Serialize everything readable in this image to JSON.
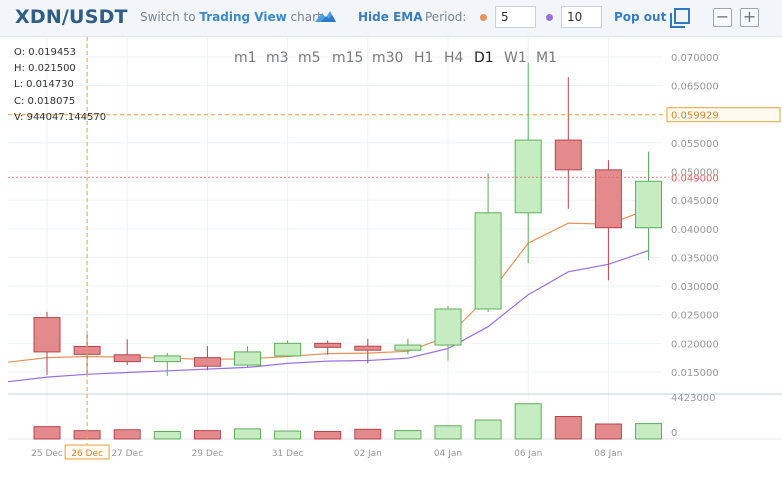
{
  "header": {
    "pair": "XDN/USDT",
    "switch_prefix": "Switch to",
    "switch_brand": "Trading View",
    "switch_suffix": "chart",
    "hide_ema": "Hide EMA",
    "period_label": "Period:",
    "ema_fast": "5",
    "ema_slow": "10",
    "pop_out": "Pop out",
    "minus": "−",
    "plus": "+"
  },
  "colors": {
    "up_fill": "#c8ecc2",
    "up_stroke": "#5fae5a",
    "down_fill": "#e48a8d",
    "down_stroke": "#b5464b",
    "ema_fast": "#e7935c",
    "ema_slow": "#9b6fe0",
    "crosshair": "#e8a23c",
    "last_price": "#e26464"
  },
  "ohlc": [
    {
      "label": "O:",
      "value": "0.019453"
    },
    {
      "label": "H:",
      "value": "0.021500"
    },
    {
      "label": "L:",
      "value": "0.014730"
    },
    {
      "label": "C:",
      "value": "0.018075"
    },
    {
      "label": "V:",
      "value": "944047.144570"
    }
  ],
  "timeframes": [
    {
      "label": "m1",
      "active": false
    },
    {
      "label": "m3",
      "active": false
    },
    {
      "label": "m5",
      "active": false
    },
    {
      "label": "m15",
      "active": false
    },
    {
      "label": "m30",
      "active": false
    },
    {
      "label": "H1",
      "active": false
    },
    {
      "label": "H4",
      "active": false
    },
    {
      "label": "D1",
      "active": true
    },
    {
      "label": "W1",
      "active": false
    },
    {
      "label": "M1",
      "active": false
    }
  ],
  "chart_data": {
    "type": "candlestick",
    "price_ticks": [
      "0.070000",
      "0.065000",
      "0.060000",
      "0.055000",
      "0.050000",
      "0.045000",
      "0.040000",
      "0.035000",
      "0.030000",
      "0.025000",
      "0.020000",
      "0.015000"
    ],
    "ylim": [
      0.0115,
      0.0735
    ],
    "crosshair_price": "0.059929",
    "crosshair_price_value": 0.059929,
    "last_price": "0.049000",
    "last_price_value": 0.049,
    "volume_max_label": "4423000",
    "volume_zero_label": "0",
    "volume_max": 4423000,
    "x_labels": [
      {
        "label": "25 Dec",
        "index": 0
      },
      {
        "label": "26 Dec",
        "index": 1,
        "highlight": true
      },
      {
        "label": "27 Dec",
        "index": 2
      },
      {
        "label": "29 Dec",
        "index": 4
      },
      {
        "label": "31 Dec",
        "index": 6
      },
      {
        "label": "02 Jan",
        "index": 8
      },
      {
        "label": "04 Jan",
        "index": 10
      },
      {
        "label": "06 Jan",
        "index": 12
      },
      {
        "label": "08 Jan",
        "index": 14
      }
    ],
    "crosshair_index": 1,
    "candles": [
      {
        "o": 0.0245,
        "h": 0.0255,
        "l": 0.0145,
        "c": 0.0185,
        "v": 1400000
      },
      {
        "o": 0.019453,
        "h": 0.0215,
        "l": 0.01473,
        "c": 0.018075,
        "v": 944047
      },
      {
        "o": 0.018,
        "h": 0.0207,
        "l": 0.0162,
        "c": 0.0168,
        "v": 1050000
      },
      {
        "o": 0.0168,
        "h": 0.0183,
        "l": 0.0143,
        "c": 0.0178,
        "v": 850000
      },
      {
        "o": 0.0175,
        "h": 0.0195,
        "l": 0.0153,
        "c": 0.016,
        "v": 950000
      },
      {
        "o": 0.0162,
        "h": 0.0195,
        "l": 0.0158,
        "c": 0.0185,
        "v": 1150000
      },
      {
        "o": 0.0178,
        "h": 0.0205,
        "l": 0.0176,
        "c": 0.02,
        "v": 900000
      },
      {
        "o": 0.02,
        "h": 0.0205,
        "l": 0.018,
        "c": 0.0193,
        "v": 850000
      },
      {
        "o": 0.0195,
        "h": 0.0208,
        "l": 0.0165,
        "c": 0.0188,
        "v": 1100000
      },
      {
        "o": 0.0188,
        "h": 0.0208,
        "l": 0.0181,
        "c": 0.0197,
        "v": 950000
      },
      {
        "o": 0.0197,
        "h": 0.0265,
        "l": 0.017,
        "c": 0.026,
        "v": 1500000
      },
      {
        "o": 0.026,
        "h": 0.0497,
        "l": 0.0255,
        "c": 0.0428,
        "v": 2150000
      },
      {
        "o": 0.0428,
        "h": 0.069,
        "l": 0.034,
        "c": 0.0555,
        "v": 4000000
      },
      {
        "o": 0.0555,
        "h": 0.0665,
        "l": 0.0435,
        "c": 0.0503,
        "v": 2550000
      },
      {
        "o": 0.0503,
        "h": 0.052,
        "l": 0.031,
        "c": 0.0402,
        "v": 1700000
      },
      {
        "o": 0.0402,
        "h": 0.0535,
        "l": 0.0345,
        "c": 0.0483,
        "v": 1750000
      }
    ],
    "ema_fast_values": [
      0.0175,
      0.0177,
      0.0176,
      0.0174,
      0.0172,
      0.0173,
      0.0177,
      0.0182,
      0.0183,
      0.0186,
      0.0212,
      0.0283,
      0.0375,
      0.041,
      0.0408,
      0.0434
    ],
    "ema_slow_values": [
      0.0141,
      0.0146,
      0.0149,
      0.0152,
      0.0155,
      0.0158,
      0.0165,
      0.0169,
      0.017,
      0.0174,
      0.0191,
      0.0229,
      0.0285,
      0.0325,
      0.0338,
      0.0362
    ]
  }
}
